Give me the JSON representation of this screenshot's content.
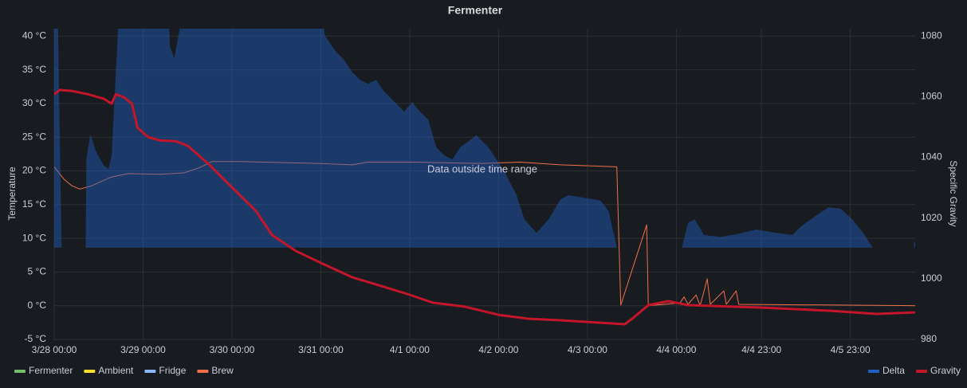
{
  "chart_data": {
    "type": "timeseries",
    "title": "Fermenter",
    "ylabel": "Temperature",
    "y2label": "Specific Gravity",
    "annotation": "Data outside time range",
    "xlim": [
      "3/28 00:00",
      "4/6 16:30"
    ],
    "xticks": [
      "3/28 00:00",
      "3/29 00:00",
      "3/30 00:00",
      "3/31 00:00",
      "4/1 00:00",
      "4/2 00:00",
      "4/3 00:00",
      "4/4 00:00",
      "4/4 23:00",
      "4/5 23:00"
    ],
    "ylim": [
      -5,
      41.1
    ],
    "yticks": [
      {
        "value": -5,
        "label": "-5 °C"
      },
      {
        "value": 0,
        "label": "0 °C"
      },
      {
        "value": 5,
        "label": "5 °C"
      },
      {
        "value": 10,
        "label": "10 °C"
      },
      {
        "value": 15,
        "label": "15 °C"
      },
      {
        "value": 20,
        "label": "20 °C"
      },
      {
        "value": 25,
        "label": "25 °C"
      },
      {
        "value": 30,
        "label": "30 °C"
      },
      {
        "value": 35,
        "label": "35 °C"
      },
      {
        "value": 40,
        "label": "40 °C"
      }
    ],
    "y2lim": [
      980,
      1082.4
    ],
    "y2ticks": [
      980,
      1000,
      1020,
      1040,
      1060,
      1080
    ],
    "grid": true,
    "legend_left": [
      "Fermenter",
      "Ambient",
      "Fridge",
      "Brew"
    ],
    "series": [
      {
        "name": "Fermenter",
        "color": "#73bf69",
        "style": "line",
        "x": [],
        "values": []
      },
      {
        "name": "Ambient",
        "color": "#fade2a",
        "style": "line",
        "x": [],
        "values": []
      },
      {
        "name": "Fridge",
        "color": "#8ab8ff",
        "style": "line",
        "x": [],
        "values": []
      },
      {
        "name": "Brew",
        "color": "#f2704a",
        "style": "line",
        "x": [
          "3/28 00:00",
          "3/28 02:35",
          "3/28 04:45",
          "3/28 06:55",
          "3/28 10:10",
          "3/28 15:30",
          "3/28 19:55",
          "3/29 04:30",
          "3/29 11:00",
          "3/29 15:20",
          "3/29 18:35",
          "3/30 02:10",
          "3/31 00:00",
          "3/31 08:25",
          "3/31 12:45",
          "4/1 01:45",
          "4/1 19:00",
          "4/2 05:50",
          "4/2 16:45",
          "4/3 07:55",
          "4/3 09:00",
          "4/3 16:00",
          "4/3 16:25",
          "4/4 01:00",
          "4/4 02:05",
          "4/4 03:10",
          "4/4 05:20",
          "4/4 06:25",
          "4/4 07:30",
          "4/4 08:20",
          "4/4 09:10",
          "4/4 12:50",
          "4/4 13:30",
          "4/4 16:10",
          "4/4 16:50",
          "4/6 16:30"
        ],
        "values": [
          20.6,
          18.8,
          17.8,
          17.3,
          17.8,
          19.1,
          19.6,
          19.5,
          19.7,
          20.5,
          21.4,
          21.4,
          21.1,
          20.9,
          21.3,
          21.3,
          21.1,
          21.3,
          20.9,
          20.6,
          0.1,
          12,
          0,
          0.4,
          1.3,
          0.2,
          1.6,
          0,
          2.2,
          4,
          0.2,
          2.2,
          0.2,
          2.2,
          0.2,
          0
        ]
      },
      {
        "name": "Delta",
        "color": "#1f60c4",
        "style": "area",
        "x": [
          "3/28 00:00",
          "3/28 00:55",
          "3/28 02:00",
          "3/28 05:00",
          "3/28 08:30",
          "3/28 08:40",
          "3/28 09:45",
          "3/28 11:15",
          "3/28 13:25",
          "3/28 14:40",
          "3/28 15:30",
          "3/28 17:15",
          "3/28 17:45",
          "3/29 06:40",
          "3/29 07:20",
          "3/29 08:25",
          "3/29 09:55",
          "3/29 10:35",
          "3/31 00:00",
          "3/31 01:05",
          "3/31 02:10",
          "3/31 04:05",
          "3/31 06:15",
          "3/31 08:25",
          "3/31 10:35",
          "3/31 12:45",
          "3/31 14:55",
          "3/31 17:05",
          "3/31 20:20",
          "3/31 22:30",
          "4/1 00:40",
          "4/1 02:50",
          "4/1 05:00",
          "4/1 07:10",
          "4/1 09:20",
          "4/1 11:30",
          "4/1 13:40",
          "4/1 18:00",
          "4/1 21:15",
          "4/2 01:35",
          "4/2 04:50",
          "4/2 07:00",
          "4/2 10:15",
          "4/2 13:30",
          "4/2 16:45",
          "4/2 18:55",
          "4/2 23:15",
          "4/3 03:35",
          "4/3 05:45",
          "4/3 07:55",
          "4/3 16:00",
          "4/4 01:30",
          "4/4 03:10",
          "4/4 04:55",
          "4/4 07:30",
          "4/4 11:50",
          "4/4 16:10",
          "4/4 21:35",
          "4/5 03:00",
          "4/5 07:20",
          "4/5 09:30",
          "4/5 13:50",
          "4/5 17:05",
          "4/5 20:20",
          "4/5 23:35",
          "4/6 02:50",
          "4/6 05:00",
          "4/6 10:00",
          "4/6 16:10",
          "4/6 16:30"
        ],
        "values": [
          45,
          45,
          8.6,
          null,
          8.6,
          21.7,
          25.5,
          22.9,
          20.8,
          20.3,
          22.3,
          41.1,
          45,
          45,
          38.3,
          36.8,
          41.1,
          45,
          45,
          40,
          39.2,
          37.7,
          36.5,
          34.7,
          33.5,
          32.9,
          33.5,
          31.8,
          30,
          28.8,
          30.2,
          28.8,
          27.6,
          23.5,
          22.3,
          21.7,
          23.5,
          25.3,
          23.5,
          19.9,
          16.4,
          12.8,
          10.8,
          12.8,
          15.8,
          16.4,
          16,
          15.6,
          14,
          8.6,
          null,
          8.6,
          12.3,
          12.8,
          10.5,
          10.2,
          10.6,
          11.3,
          10.8,
          10.5,
          11.7,
          13.4,
          14.6,
          14.4,
          12.8,
          10.5,
          8.6,
          null,
          9.4,
          9.4
        ]
      },
      {
        "name": "Gravity",
        "color": "#c4162a",
        "style": "line",
        "axis": "y2",
        "x": [
          "3/28 00:00",
          "3/28 01:30",
          "3/28 04:45",
          "3/28 09:05",
          "3/28 13:25",
          "3/28 15:30",
          "3/28 16:40",
          "3/28 18:50",
          "3/28 21:00",
          "3/28 22:30",
          "3/29 01:20",
          "3/29 04:30",
          "3/29 08:50",
          "3/29 12:05",
          "3/29 17:30",
          "3/30 00:00",
          "3/30 06:30",
          "3/30 10:50",
          "3/30 17:20",
          "3/31 00:00",
          "3/31 08:25",
          "3/31 17:05",
          "4/1 00:00",
          "4/1 06:15",
          "4/1 14:55",
          "4/2 00:00",
          "4/2 08:10",
          "4/2 16:45",
          "4/3 03:35",
          "4/3 10:05",
          "4/3 12:05",
          "4/3 16:25",
          "4/3 21:50",
          "4/4 03:10",
          "4/4 22:40",
          "4/5 18:10",
          "4/6 06:00",
          "4/6 16:30"
        ],
        "values": [
          1060.8,
          1062.2,
          1061.9,
          1060.8,
          1059.3,
          1057.7,
          1060.8,
          1059.8,
          1057.7,
          1049.8,
          1046.7,
          1045.6,
          1045.3,
          1043.8,
          1038,
          1030.1,
          1022.3,
          1014.4,
          1009.1,
          1005.2,
          1000.5,
          997.3,
          994.7,
          992.1,
          990.8,
          988.1,
          986.8,
          986.3,
          985.5,
          985,
          986.8,
          991.3,
          992.6,
          991.3,
          990.5,
          989.4,
          988.4,
          988.9
        ]
      }
    ]
  }
}
